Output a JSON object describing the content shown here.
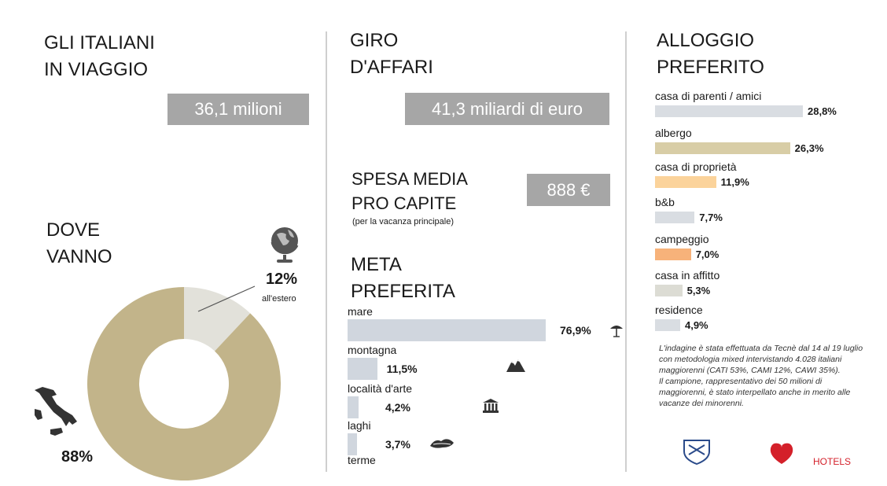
{
  "colors": {
    "gold": "#c2b48a",
    "light_gray": "#e2e1da",
    "box_gray": "#a6a6a6",
    "bar_blue_gray": "#d0d6de"
  },
  "col1": {
    "title_line1": "GLI ITALIANI",
    "title_line2": "IN VIAGGIO",
    "value_box": "36,1 milioni",
    "dove_line1": "DOVE",
    "dove_line2": "VANNO",
    "abroad_pct": "12%",
    "abroad_label": "all'estero",
    "italy_pct": "88%"
  },
  "col2": {
    "title_line1": "GIRO",
    "title_line2": "D'AFFARI",
    "value_box": "41,3 miliardi di euro",
    "spesa_line1": "SPESA MEDIA",
    "spesa_line2": "PRO CAPITE",
    "spesa_note": "(per la vacanza principale)",
    "spesa_value": "888 €",
    "meta_line1": "META",
    "meta_line2": "PREFERITA"
  },
  "col3": {
    "title_line1": "ALLOGGIO",
    "title_line2": "PREFERITO",
    "note_p1": "L'indagine è stata effettuata da Tecnè dal 14 al 19 luglio con metodologia mixed intervistando 4.028 italiani maggiorenni (CATI 53%, CAMI 12%, CAWI 35%).",
    "note_p2": "Il campione, rappresentativo dei 50 milioni di maggiorenni, è stato interpellato anche in merito alle vacanze dei minorenni.",
    "logo2_text": "HOTELS"
  },
  "chart_data": [
    {
      "type": "pie",
      "title": "DOVE VANNO",
      "categories": [
        "all'estero",
        "Italia"
      ],
      "values": [
        12,
        88
      ],
      "colors": [
        "#e2e1da",
        "#c2b48a"
      ],
      "style": "donut"
    },
    {
      "type": "bar",
      "title": "META PREFERITA",
      "orientation": "horizontal",
      "categories": [
        "mare",
        "montagna",
        "località d'arte",
        "laghi",
        "terme"
      ],
      "values": [
        76.9,
        11.5,
        4.2,
        3.7,
        null
      ],
      "labels": [
        "76,9%",
        "11,5%",
        "4,2%",
        "3,7%",
        ""
      ],
      "icons": [
        "umbrella-icon",
        "mountain-icon",
        "temple-icon",
        "lake-icon",
        ""
      ]
    },
    {
      "type": "bar",
      "title": "ALLOGGIO PREFERITO",
      "orientation": "horizontal",
      "categories": [
        "casa di parenti / amici",
        "albergo",
        "casa di proprietà",
        "b&b",
        "campeggio",
        "casa in affitto",
        "residence"
      ],
      "values": [
        28.8,
        26.3,
        11.9,
        7.7,
        7.0,
        5.3,
        4.9
      ],
      "labels": [
        "28,8%",
        "26,3%",
        "11,9%",
        "7,7%",
        "7,0%",
        "5,3%",
        "4,9%"
      ],
      "colors": [
        "#d9dde2",
        "#d8cda6",
        "#fbd39b",
        "#d9dde2",
        "#f7b27a",
        "#dcdcd4",
        "#d9dde2"
      ]
    }
  ]
}
